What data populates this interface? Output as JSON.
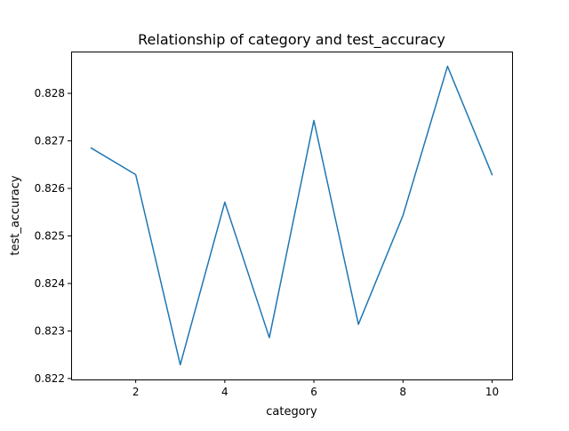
{
  "chart_data": {
    "type": "line",
    "title": "Relationship of category and test_accuracy",
    "xlabel": "category",
    "ylabel": "test_accuracy",
    "x": [
      1,
      2,
      3,
      4,
      5,
      6,
      7,
      8,
      9,
      10
    ],
    "series": [
      {
        "values": [
          0.82685,
          0.82629,
          0.82229,
          0.82571,
          0.82286,
          0.82743,
          0.82314,
          0.82543,
          0.82857,
          0.82629
        ],
        "color": "#1f77b4"
      }
    ],
    "xlim": [
      0.55,
      10.45
    ],
    "ylim": [
      0.82198,
      0.82888
    ],
    "xticks": [
      2,
      4,
      6,
      8,
      10
    ],
    "xtick_labels": [
      "2",
      "4",
      "6",
      "8",
      "10"
    ],
    "yticks": [
      0.822,
      0.823,
      0.824,
      0.825,
      0.826,
      0.827,
      0.828
    ],
    "ytick_labels": [
      "0.822",
      "0.823",
      "0.824",
      "0.825",
      "0.826",
      "0.827",
      "0.828"
    ],
    "grid": false,
    "legend": "none"
  }
}
